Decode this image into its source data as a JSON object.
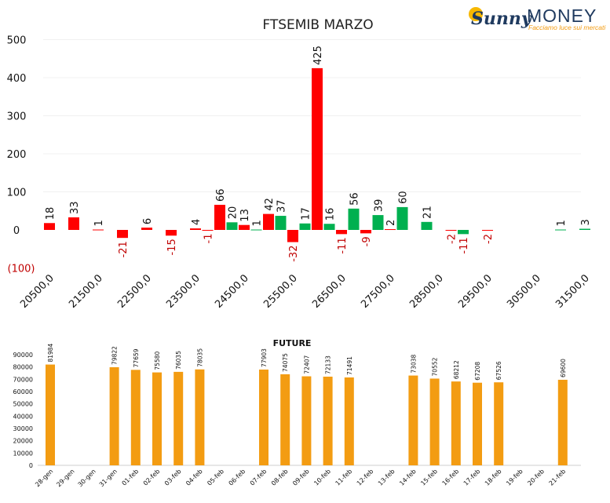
{
  "logo": {
    "word1": "Sunny",
    "word2": "MONEY",
    "tagline": "Facciamo luce sui mercati",
    "colors": {
      "orange": "#f39c12",
      "navy": "#1f3a5f"
    }
  },
  "chart_data": [
    {
      "type": "bar",
      "title": "FTSEMIB MARZO",
      "ylim": [
        -100,
        500
      ],
      "yticks": [
        500,
        400,
        300,
        200,
        100,
        0
      ],
      "ytick_negative_label": "(100)",
      "xtick_labels": [
        "20500,0",
        "21500,0",
        "22500,0",
        "23500,0",
        "24500,0",
        "25500,0",
        "26500,0",
        "27500,0",
        "28500,0",
        "29500,0",
        "30500,0",
        "31500,0"
      ],
      "x_start": 20500,
      "x_step": 250,
      "grid": true,
      "colors": {
        "red": "#ff0000",
        "green": "#00b050",
        "negative_label": "#c00000"
      },
      "series": [
        {
          "color_key": "red",
          "values": [
            18,
            33,
            1,
            -21,
            6,
            -15,
            4,
            -1,
            66,
            13,
            42,
            -32,
            425,
            -11,
            -9,
            2,
            null,
            null,
            -2,
            -2,
            null,
            null,
            null,
            null,
            null,
            null,
            null,
            null,
            null,
            null,
            null,
            null,
            null,
            null,
            null,
            null,
            null,
            null,
            null,
            null,
            null,
            null,
            null,
            null,
            null
          ]
        },
        {
          "color_key": "green",
          "values": [
            null,
            null,
            null,
            null,
            null,
            null,
            null,
            null,
            null,
            20,
            1,
            37,
            17,
            16,
            56,
            39,
            60,
            21,
            -11,
            null,
            null,
            null,
            null,
            null,
            null,
            null,
            null,
            null,
            null,
            null,
            null,
            null,
            null,
            null,
            null,
            null,
            null,
            null,
            null,
            null,
            null,
            null,
            1,
            3,
            null
          ]
        }
      ],
      "bars": [
        {
          "x": 20500,
          "value": 18,
          "color": "red"
        },
        {
          "x": 21000,
          "value": 33,
          "color": "red"
        },
        {
          "x": 21500,
          "value": 1,
          "color": "red"
        },
        {
          "x": 22000,
          "value": -21,
          "color": "red"
        },
        {
          "x": 22500,
          "value": 6,
          "color": "red"
        },
        {
          "x": 23000,
          "value": -15,
          "color": "red"
        },
        {
          "x": 23500,
          "value": 4,
          "color": "red"
        },
        {
          "x": 23750,
          "value": -1,
          "color": "red"
        },
        {
          "x": 24000,
          "value": 66,
          "color": "red"
        },
        {
          "x": 24250,
          "value": 20,
          "color": "green"
        },
        {
          "x": 24500,
          "value": 13,
          "color": "red"
        },
        {
          "x": 24750,
          "value": 1,
          "color": "green"
        },
        {
          "x": 25000,
          "value": 42,
          "color": "red"
        },
        {
          "x": 25250,
          "value": 37,
          "color": "green"
        },
        {
          "x": 25500,
          "value": -32,
          "color": "red"
        },
        {
          "x": 25750,
          "value": 17,
          "color": "green"
        },
        {
          "x": 26000,
          "value": 425,
          "color": "red"
        },
        {
          "x": 26250,
          "value": 16,
          "color": "green"
        },
        {
          "x": 26500,
          "value": -11,
          "color": "red"
        },
        {
          "x": 26750,
          "value": 56,
          "color": "green"
        },
        {
          "x": 27000,
          "value": -9,
          "color": "red"
        },
        {
          "x": 27250,
          "value": 39,
          "color": "green"
        },
        {
          "x": 27500,
          "value": 2,
          "color": "red"
        },
        {
          "x": 27750,
          "value": 60,
          "color": "green"
        },
        {
          "x": 28250,
          "value": 21,
          "color": "green"
        },
        {
          "x": 28750,
          "value": -2,
          "color": "red"
        },
        {
          "x": 29000,
          "value": -11,
          "color": "green"
        },
        {
          "x": 29500,
          "value": -2,
          "color": "red"
        },
        {
          "x": 31000,
          "value": 1,
          "color": "green"
        },
        {
          "x": 31500,
          "value": 3,
          "color": "green"
        }
      ]
    },
    {
      "type": "bar",
      "title": "FUTURE",
      "ylim": [
        0,
        90000
      ],
      "yticks": [
        90000,
        80000,
        70000,
        60000,
        50000,
        40000,
        30000,
        20000,
        10000,
        0
      ],
      "color": "#f39c12",
      "categories": [
        "28-gen",
        "29-gen",
        "30-gen",
        "31-gen",
        "01-feb",
        "02-feb",
        "03-feb",
        "04-feb",
        "05-feb",
        "06-feb",
        "07-feb",
        "08-feb",
        "09-feb",
        "10-feb",
        "11-feb",
        "12-feb",
        "13-feb",
        "14-feb",
        "15-feb",
        "16-feb",
        "17-feb",
        "18-feb",
        "19-feb",
        "20-feb",
        "21-feb"
      ],
      "values": [
        81984,
        null,
        null,
        79822,
        77659,
        75580,
        76035,
        78035,
        null,
        null,
        77903,
        74075,
        72407,
        72133,
        71491,
        null,
        null,
        73038,
        70552,
        68212,
        67208,
        67526,
        null,
        null,
        69600
      ]
    }
  ]
}
